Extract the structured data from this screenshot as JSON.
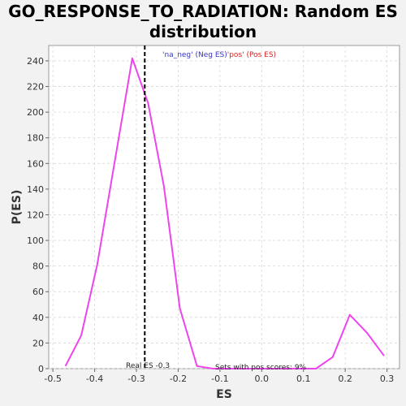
{
  "chart_data": {
    "type": "line",
    "title_lines": [
      "GO_RESPONSE_TO_RADIATION: Random ES",
      "distribution"
    ],
    "xlabel": "ES",
    "ylabel": "P(ES)",
    "xlim": [
      -0.51,
      0.33
    ],
    "ylim": [
      0,
      252
    ],
    "x_ticks": [
      -0.5,
      -0.4,
      -0.3,
      -0.2,
      -0.1,
      0.0,
      0.1,
      0.2,
      0.3
    ],
    "x_tick_labels": [
      "-0.5",
      "-0.4",
      "-0.3",
      "-0.2",
      "-0.1",
      "0.0",
      "0.1",
      "0.2",
      "0.3"
    ],
    "y_ticks": [
      0,
      20,
      40,
      60,
      80,
      100,
      120,
      140,
      160,
      180,
      200,
      220,
      240
    ],
    "y_tick_labels": [
      "0",
      "20",
      "40",
      "60",
      "80",
      "100",
      "120",
      "140",
      "160",
      "180",
      "200",
      "220",
      "240"
    ],
    "grid": true,
    "series": [
      {
        "color": "#ee44ee",
        "x": [
          -0.47,
          -0.432,
          -0.394,
          -0.31,
          -0.272,
          -0.234,
          -0.196,
          -0.155,
          -0.117,
          0.13,
          0.17,
          0.211,
          0.252,
          0.293
        ],
        "y": [
          2,
          26,
          81,
          242,
          207,
          142,
          47,
          2,
          0,
          0,
          9,
          42,
          28,
          10
        ]
      }
    ],
    "real_es": {
      "x": -0.28,
      "label": "Real ES -0.3"
    },
    "legend": {
      "placement": "top-center",
      "neg_text": "'na_neg' (Neg ES)",
      "pos_text": "'pos' (Pos ES)",
      "neg_color": "#3333cc",
      "pos_color": "#dd2222"
    },
    "annotations": {
      "pos_scores": "Sets with pos scores: 9%"
    }
  }
}
